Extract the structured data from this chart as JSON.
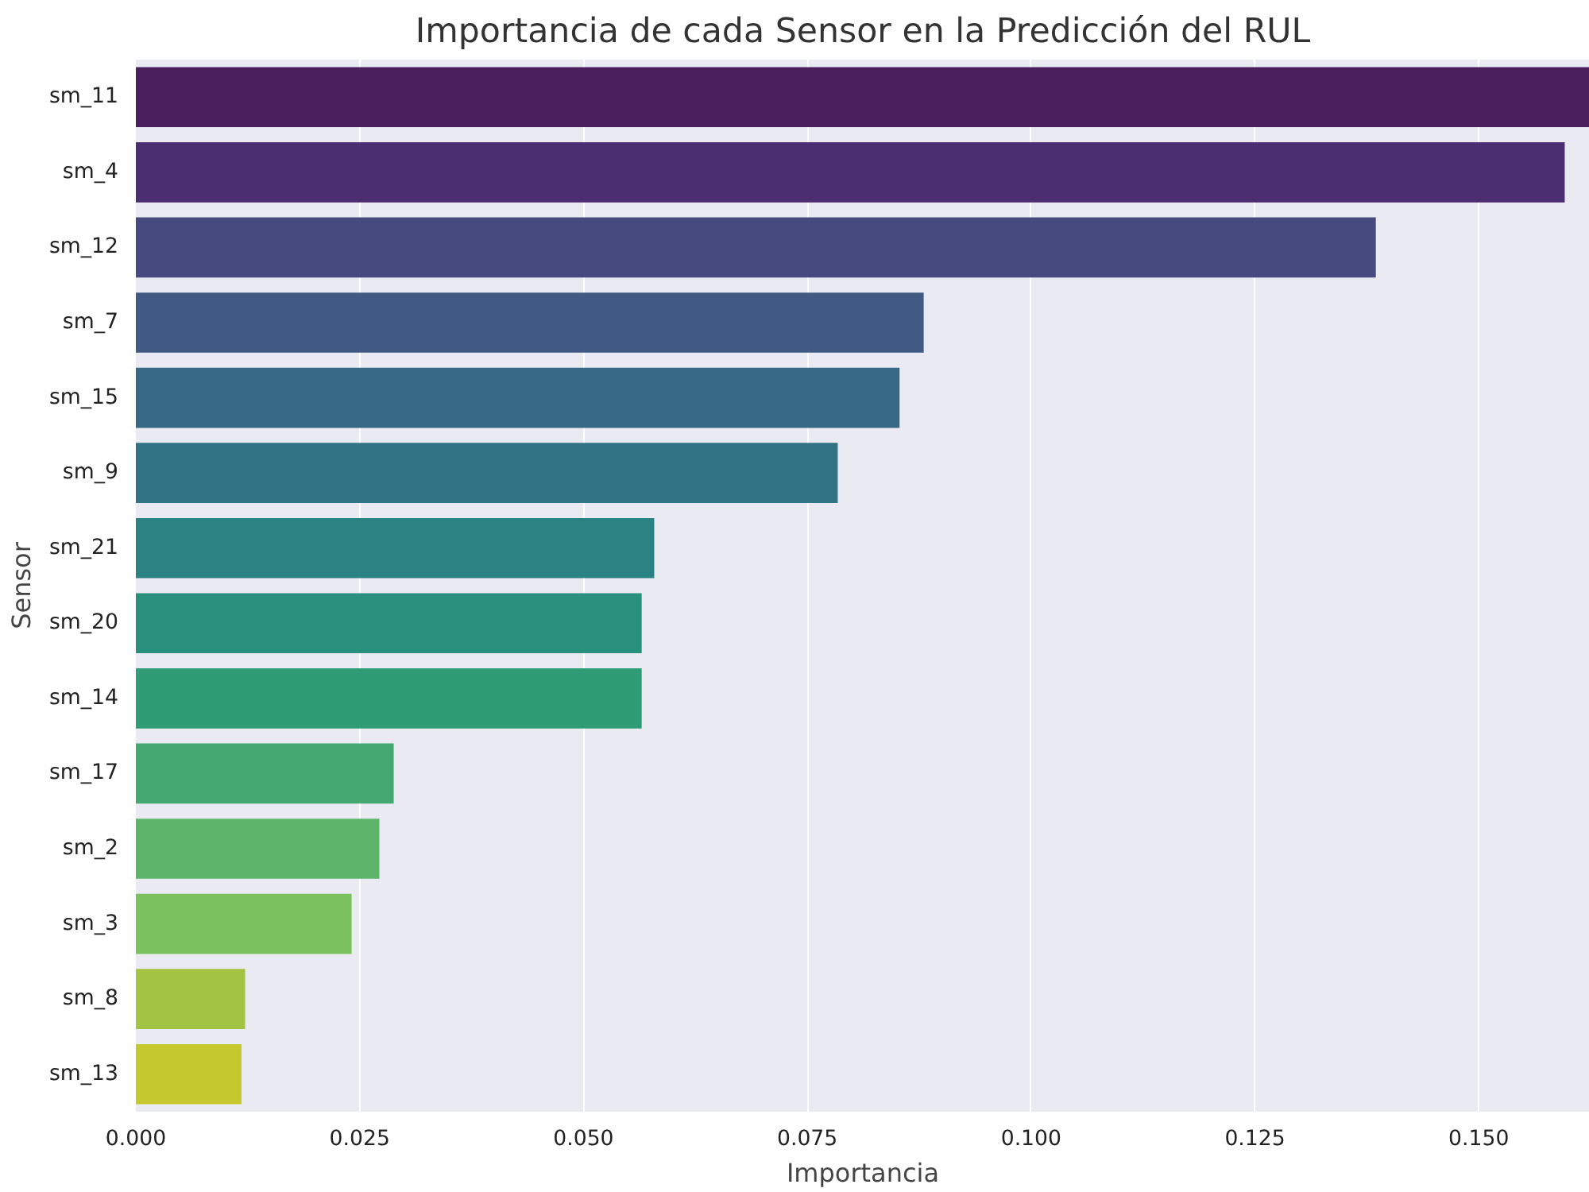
{
  "chart_data": {
    "type": "bar",
    "orientation": "horizontal",
    "title": "Importancia de cada Sensor en la Predicción del RUL",
    "xlabel": "Importancia",
    "ylabel": "Sensor",
    "categories": [
      "sm_11",
      "sm_4",
      "sm_12",
      "sm_7",
      "sm_15",
      "sm_9",
      "sm_21",
      "sm_20",
      "sm_14",
      "sm_17",
      "sm_2",
      "sm_3",
      "sm_8",
      "sm_13"
    ],
    "values": [
      0.1624,
      0.1596,
      0.1385,
      0.088,
      0.0853,
      0.0784,
      0.0579,
      0.0565,
      0.0565,
      0.0288,
      0.0272,
      0.0241,
      0.0122,
      0.0118
    ],
    "colors": [
      "#4b1e5e",
      "#4b2e72",
      "#474a7f",
      "#405a84",
      "#376985",
      "#317584",
      "#2b8282",
      "#28907d",
      "#2f9c76",
      "#45a871",
      "#5db56a",
      "#7bc25f",
      "#a3c343",
      "#c4c92d"
    ],
    "xlim": [
      0,
      0.1624
    ],
    "xticks": [
      {
        "value": 0,
        "label": "0.000"
      },
      {
        "value": 0.025,
        "label": "0.025"
      },
      {
        "value": 0.05,
        "label": "0.050"
      },
      {
        "value": 0.075,
        "label": "0.075"
      },
      {
        "value": 0.1,
        "label": "0.100"
      },
      {
        "value": 0.125,
        "label": "0.125"
      },
      {
        "value": 0.15,
        "label": "0.150"
      }
    ],
    "grid": "x"
  }
}
